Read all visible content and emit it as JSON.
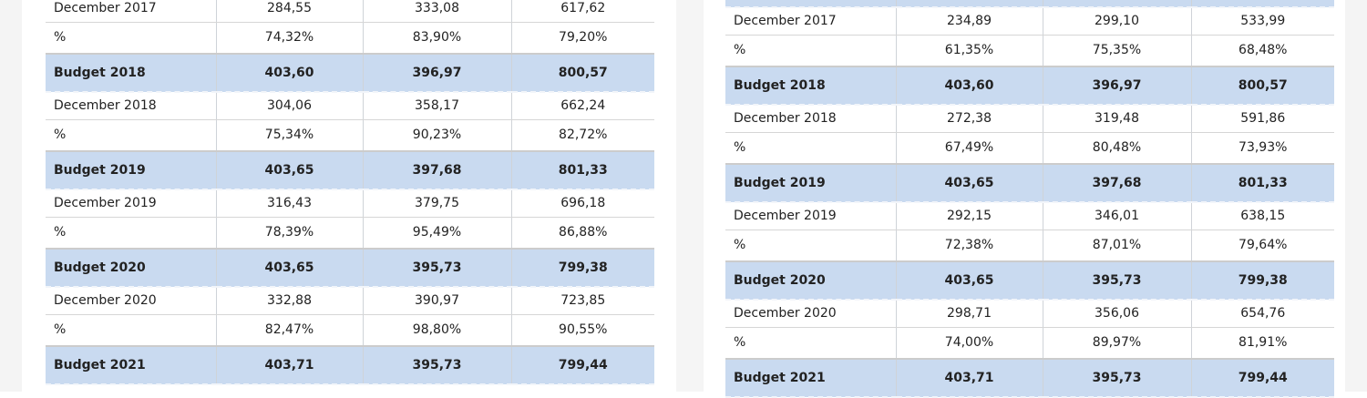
{
  "left_table": {
    "rows": [
      {
        "type": "dec",
        "label": "December 2017",
        "v1": "284,55",
        "v2": "333,08",
        "v3": "617,62"
      },
      {
        "type": "pct",
        "label": "%",
        "v1": "74,32%",
        "v2": "83,90%",
        "v3": "79,20%"
      },
      {
        "type": "budget",
        "label": "Budget  2018",
        "v1": "403,60",
        "v2": "396,97",
        "v3": "800,57"
      },
      {
        "type": "dec",
        "label": "December 2018",
        "v1": "304,06",
        "v2": "358,17",
        "v3": "662,24"
      },
      {
        "type": "pct",
        "label": "%",
        "v1": "75,34%",
        "v2": "90,23%",
        "v3": "82,72%"
      },
      {
        "type": "budget",
        "label": "Budget  2019",
        "v1": "403,65",
        "v2": "397,68",
        "v3": "801,33"
      },
      {
        "type": "dec",
        "label": "December 2019",
        "v1": "316,43",
        "v2": "379,75",
        "v3": "696,18"
      },
      {
        "type": "pct",
        "label": "%",
        "v1": "78,39%",
        "v2": "95,49%",
        "v3": "86,88%"
      },
      {
        "type": "budget",
        "label": "Budget  2020",
        "v1": "403,65",
        "v2": "395,73",
        "v3": "799,38"
      },
      {
        "type": "dec",
        "label": "December 2020",
        "v1": "332,88",
        "v2": "390,97",
        "v3": "723,85"
      },
      {
        "type": "pct",
        "label": "%",
        "v1": "82,47%",
        "v2": "98,80%",
        "v3": "90,55%"
      },
      {
        "type": "budget",
        "label": "Budget  2021",
        "v1": "403,71",
        "v2": "395,73",
        "v3": "799,44"
      }
    ]
  },
  "right_table": {
    "rows": [
      {
        "type": "budget",
        "label": "",
        "v1": "",
        "v2": "",
        "v3": ""
      },
      {
        "type": "dec",
        "label": "December 2017",
        "v1": "234,89",
        "v2": "299,10",
        "v3": "533,99"
      },
      {
        "type": "pct",
        "label": "%",
        "v1": "61,35%",
        "v2": "75,35%",
        "v3": "68,48%"
      },
      {
        "type": "budget",
        "label": "Budget  2018",
        "v1": "403,60",
        "v2": "396,97",
        "v3": "800,57"
      },
      {
        "type": "dec",
        "label": "December 2018",
        "v1": "272,38",
        "v2": "319,48",
        "v3": "591,86"
      },
      {
        "type": "pct",
        "label": "%",
        "v1": "67,49%",
        "v2": "80,48%",
        "v3": "73,93%"
      },
      {
        "type": "budget",
        "label": "Budget  2019",
        "v1": "403,65",
        "v2": "397,68",
        "v3": "801,33"
      },
      {
        "type": "dec",
        "label": "December 2019",
        "v1": "292,15",
        "v2": "346,01",
        "v3": "638,15"
      },
      {
        "type": "pct",
        "label": "%",
        "v1": "72,38%",
        "v2": "87,01%",
        "v3": "79,64%"
      },
      {
        "type": "budget",
        "label": "Budget  2020",
        "v1": "403,65",
        "v2": "395,73",
        "v3": "799,38"
      },
      {
        "type": "dec",
        "label": "December 2020",
        "v1": "298,71",
        "v2": "356,06",
        "v3": "654,76"
      },
      {
        "type": "pct",
        "label": "%",
        "v1": "74,00%",
        "v2": "89,97%",
        "v3": "81,91%"
      },
      {
        "type": "budget",
        "label": "Budget  2021",
        "v1": "403,71",
        "v2": "395,73",
        "v3": "799,44"
      }
    ]
  }
}
